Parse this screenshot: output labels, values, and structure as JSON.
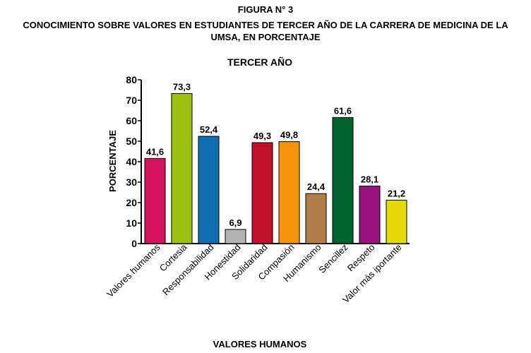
{
  "figure_label": "FIGURA N° 3",
  "heading": {
    "line1": "CONOCIMIENTO SOBRE VALORES EN ESTUDIANTES DE TERCER AÑO DE LA CARRERA DE MEDICINA DE LA",
    "line2": "UMSA, EN PORCENTAJE"
  },
  "chart_data": {
    "type": "bar",
    "title": "TERCER AÑO",
    "xlabel": "VALORES HUMANOS",
    "ylabel": "PORCENTAJE",
    "ylim": [
      0,
      80
    ],
    "yticks": [
      0,
      10,
      20,
      30,
      40,
      50,
      60,
      70,
      80
    ],
    "grid": false,
    "categories": [
      "Valores humanos",
      "Cortesia",
      "Responsabilidad",
      "Honestidad",
      "Solidaridad",
      "Compasión",
      "Humanismo",
      "Sencillez",
      "Respeto",
      "Valor más iportante"
    ],
    "values": [
      41.6,
      73.3,
      52.4,
      6.9,
      49.3,
      49.8,
      24.4,
      61.6,
      28.1,
      21.2
    ],
    "value_labels": [
      "41,6",
      "73,3",
      "52,4",
      "6,9",
      "49,3",
      "49,8",
      "24,4",
      "61,6",
      "28,1",
      "21,2"
    ],
    "colors": [
      "#d4135f",
      "#9ac20f",
      "#0f6db0",
      "#b3b3b3",
      "#c0102a",
      "#f4940a",
      "#b07e48",
      "#036430",
      "#96137e",
      "#e4db05"
    ]
  }
}
